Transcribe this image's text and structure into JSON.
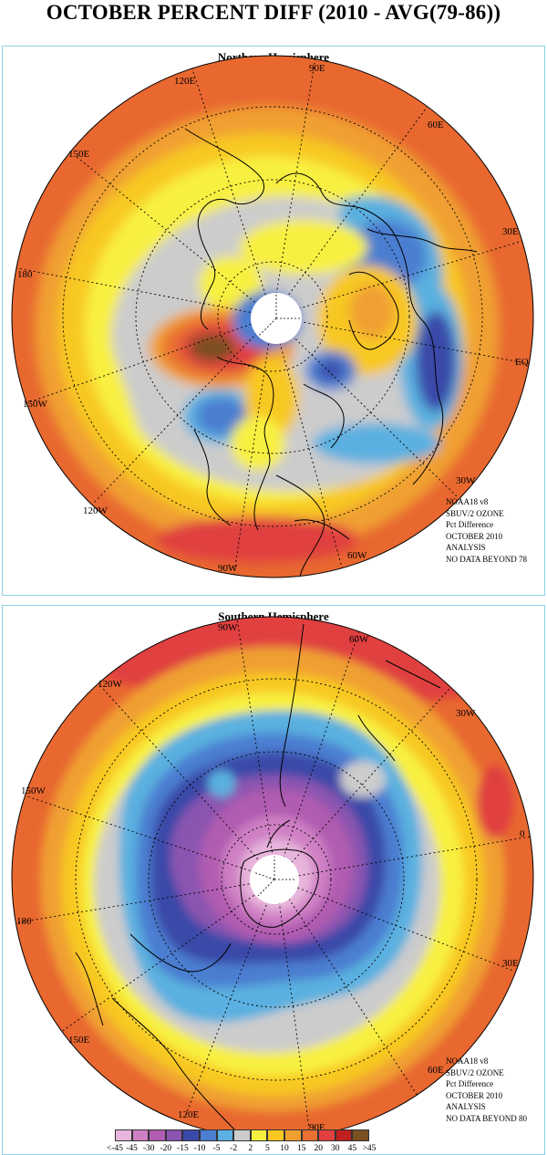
{
  "title": "OCTOBER PERCENT DIFF (2010 - AVG(79-86))",
  "north": {
    "heading": "Northern Hemisphere",
    "labels": {
      "l90e": "90E",
      "l60e": "60E",
      "l120e": "120E",
      "l150e": "150E",
      "l30e": "30E",
      "l180": "180",
      "leq": "EQ",
      "l150w": "150W",
      "l30w": "30W",
      "l120w": "120W",
      "l60w": "60W",
      "l90w": "90W"
    },
    "info": [
      "NOAA18 v8",
      "SBUV/2 OZONE",
      "Pct Difference",
      "OCTOBER 2010",
      "ANALYSIS",
      "NO DATA BEYOND  78"
    ]
  },
  "south": {
    "heading": "Southern Hemisphere",
    "labels": {
      "l90w": "90W",
      "l60w": "60W",
      "l120w": "120W",
      "l30w": "30W",
      "l150w": "150W",
      "l0": "0",
      "l180": "180",
      "l30e": "30E",
      "l150e": "150E",
      "l60e": "60E",
      "l120e": "120E",
      "l90e": "90E"
    },
    "info": [
      "NOAA18 v8",
      "SBUV/2 OZONE",
      "Pct Difference",
      "OCTOBER 2010",
      "ANALYSIS",
      "NO DATA BEYOND  80"
    ]
  },
  "legend": {
    "ticks": [
      "<-45",
      "-45",
      "-30",
      "-20",
      "-15",
      "-10",
      "-5",
      "-2",
      "2",
      "5",
      "10",
      "15",
      "20",
      "30",
      "45",
      ">45"
    ],
    "colors": [
      "#e8b6dc",
      "#cf80c4",
      "#b05cb0",
      "#8a54b0",
      "#3a4aa8",
      "#4c7ed0",
      "#5ab0e0",
      "#cccccc",
      "#f8f040",
      "#f8c820",
      "#f0a030",
      "#e87030",
      "#e04040",
      "#c02020",
      "#7a5020"
    ]
  }
}
